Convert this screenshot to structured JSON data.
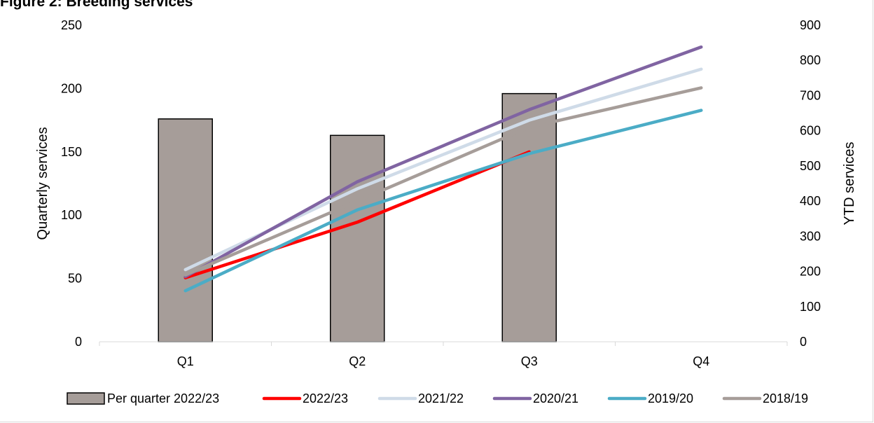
{
  "page": {
    "title": "Figure 2: Breeding services"
  },
  "chart_data": {
    "type": "bar",
    "categories": [
      "Q1",
      "Q2",
      "Q3",
      "Q4"
    ],
    "bar_series": {
      "name": "Per quarter 2022/23",
      "values": [
        176,
        163,
        196,
        null
      ],
      "axis": "left",
      "color": "#a69d99"
    },
    "line_series": [
      {
        "name": "2022/23",
        "axis": "right",
        "color": "#ff0000",
        "values": [
          182,
          340,
          540,
          null
        ]
      },
      {
        "name": "2021/22",
        "axis": "right",
        "color": "#cfdbe8",
        "values": [
          205,
          435,
          630,
          775
        ]
      },
      {
        "name": "2020/21",
        "axis": "right",
        "color": "#8064a2",
        "values": [
          185,
          455,
          660,
          838
        ]
      },
      {
        "name": "2019/20",
        "axis": "right",
        "color": "#4bacc6",
        "values": [
          145,
          375,
          535,
          658
        ]
      },
      {
        "name": "2018/19",
        "axis": "right",
        "color": "#a69d99",
        "values": [
          190,
          400,
          610,
          722
        ]
      }
    ],
    "ylabel": "Quarterly services",
    "y2label": "YTD services",
    "ylim": [
      0,
      250
    ],
    "y_ticks": [
      "0",
      "50",
      "100",
      "150",
      "200",
      "250"
    ],
    "y2lim": [
      0,
      900
    ],
    "y2_ticks": [
      "0",
      "100",
      "200",
      "300",
      "400",
      "500",
      "600",
      "700",
      "800",
      "900"
    ],
    "grid": false,
    "legend_position": "bottom"
  }
}
